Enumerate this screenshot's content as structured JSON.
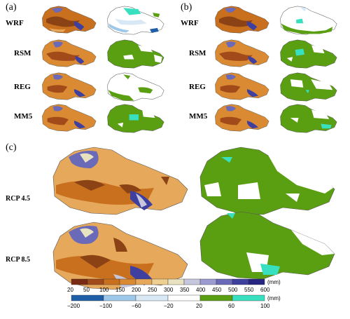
{
  "panels": {
    "a": {
      "label": "(a)",
      "rows": [
        "WRF",
        "RSM",
        "REG",
        "MM5"
      ]
    },
    "b": {
      "label": "(b)",
      "rows": [
        "WRF",
        "RSM",
        "REG",
        "MM5"
      ]
    },
    "c": {
      "label": "(c)",
      "rows": [
        "RCP 4.5",
        "RCP 8.5"
      ]
    }
  },
  "legend": {
    "precip": {
      "ticks": [
        "20",
        "50",
        "100",
        "150",
        "200",
        "250",
        "300",
        "350",
        "400",
        "450",
        "500",
        "550",
        "600"
      ],
      "unit": "(mm)",
      "colors": [
        "#7a2a12",
        "#a34a1a",
        "#c9701e",
        "#d98a32",
        "#e6a85a",
        "#f0d090",
        "#e8e2c0",
        "#c6c6dc",
        "#9b9bd0",
        "#6a6ab8",
        "#3f3fa0",
        "#262680"
      ]
    },
    "change": {
      "ticks": [
        "−200",
        "−100",
        "−60",
        "−20",
        "20",
        "60",
        "100"
      ],
      "unit": "(mm)",
      "colors": [
        "#1f5fa8",
        "#9ec8ea",
        "#d8e8f4",
        "#ffffff",
        "#5a9e12",
        "#39e0c0"
      ]
    }
  },
  "colors": {
    "land_green": "#5a9e12",
    "cyan": "#39e0c0",
    "brown_dark": "#8b4315",
    "brown": "#c9701e",
    "orange": "#e6a85a",
    "purple": "#6a6ab8"
  }
}
